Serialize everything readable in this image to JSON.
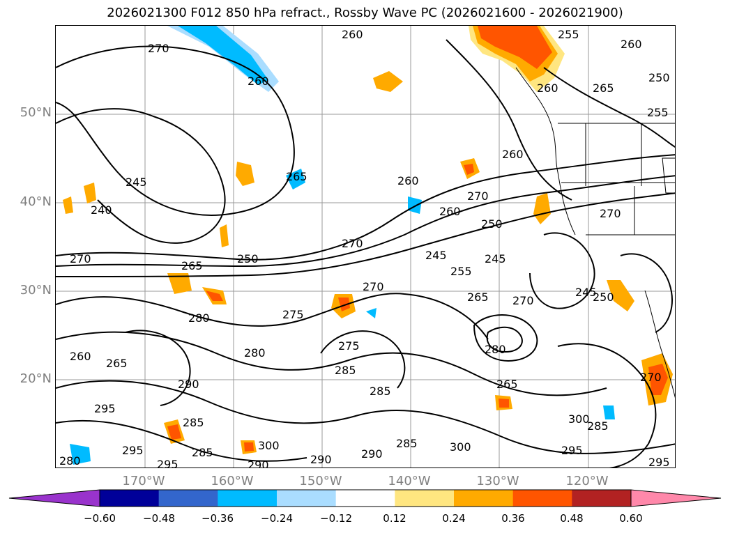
{
  "title": "2026021300 F012 850 hPa refract., Rossby Wave PC (2026021600 - 2026021900)",
  "map": {
    "lat_labels": [
      {
        "text": "50°N",
        "lat": 50
      },
      {
        "text": "40°N",
        "lat": 40
      },
      {
        "text": "30°N",
        "lat": 30
      },
      {
        "text": "20°N",
        "lat": 20
      }
    ],
    "lon_labels": [
      {
        "text": "170°W",
        "lon": -170
      },
      {
        "text": "160°W",
        "lon": -160
      },
      {
        "text": "150°W",
        "lon": -150
      },
      {
        "text": "140°W",
        "lon": -140
      },
      {
        "text": "130°W",
        "lon": -130
      },
      {
        "text": "120°W",
        "lon": -120
      }
    ],
    "contour_labels": [
      "270",
      "260",
      "255",
      "260",
      "250",
      "255",
      "265",
      "245",
      "240",
      "265",
      "260",
      "270",
      "260",
      "270",
      "250",
      "260",
      "250",
      "265",
      "270",
      "245",
      "255",
      "245",
      "265",
      "270",
      "245",
      "250",
      "270",
      "270",
      "275",
      "280",
      "280",
      "275",
      "285",
      "285",
      "280",
      "260",
      "265",
      "290",
      "295",
      "285",
      "295",
      "285",
      "295",
      "290",
      "300",
      "290",
      "290",
      "285",
      "300",
      "265",
      "285",
      "300",
      "295",
      "280",
      "295",
      "270",
      "260",
      "260"
    ]
  },
  "colorbar": {
    "ticks": [
      "−0.60",
      "−0.48",
      "−0.36",
      "−0.24",
      "−0.12",
      "0.12",
      "0.24",
      "0.36",
      "0.48",
      "0.60"
    ],
    "colors": [
      "#9933cc",
      "#000099",
      "#3366cc",
      "#00bbff",
      "#aaddff",
      "#ffffff",
      "#ffe680",
      "#ffaa00",
      "#ff5500",
      "#b22222",
      "#ff88aa"
    ]
  }
}
